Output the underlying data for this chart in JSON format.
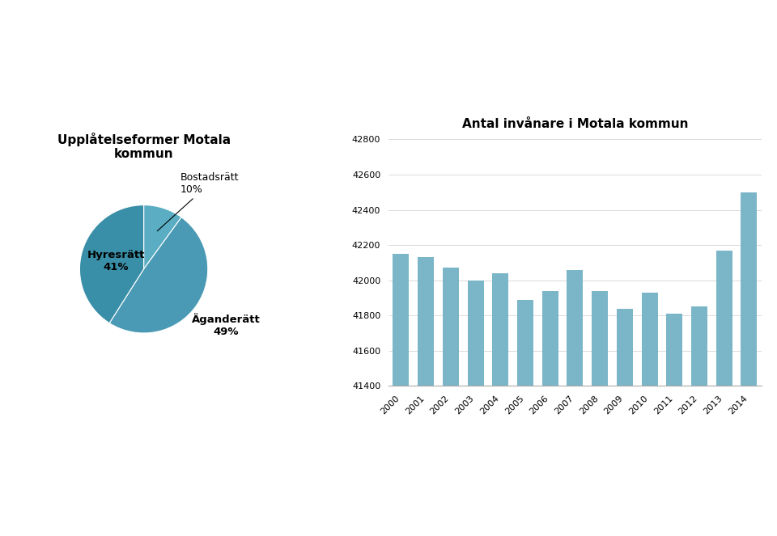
{
  "pie_title": "Upplåtelseformer Motala\nkommun",
  "pie_sizes": [
    10,
    49,
    41
  ],
  "pie_colors": [
    "#5aadc2",
    "#4a9ab5",
    "#3a8fa8"
  ],
  "bar_title": "Antal invånare i Motala kommun",
  "bar_years": [
    "2000",
    "2001",
    "2002",
    "2003",
    "2004",
    "2005",
    "2006",
    "2007",
    "2008",
    "2009",
    "2010",
    "2011",
    "2012",
    "2013",
    "2014"
  ],
  "bar_values": [
    42150,
    42130,
    42070,
    42000,
    42040,
    41890,
    41940,
    42060,
    41940,
    41840,
    41930,
    41810,
    41850,
    42170,
    42500
  ],
  "bar_color": "#7ab5c8",
  "bar_ylim": [
    41400,
    42800
  ],
  "bar_yticks": [
    41400,
    41600,
    41800,
    42000,
    42200,
    42400,
    42600,
    42800
  ],
  "background_color": "#ffffff"
}
